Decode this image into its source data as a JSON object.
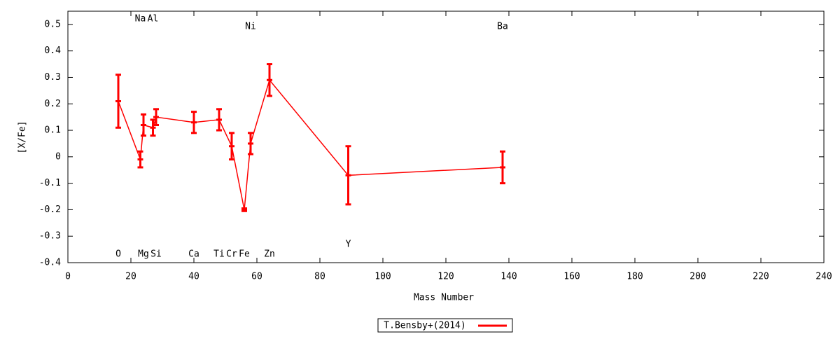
{
  "chart_data": {
    "type": "errorline",
    "x_label": "Mass Number",
    "y_label": "[X/Fe]",
    "xlim": [
      0,
      240
    ],
    "xticks": [
      0,
      20,
      40,
      60,
      80,
      100,
      120,
      140,
      160,
      180,
      200,
      220,
      240
    ],
    "ylim": [
      -0.4,
      0.55
    ],
    "yticks": [
      -0.4,
      -0.3,
      -0.2,
      -0.1,
      0,
      0.1,
      0.2,
      0.3,
      0.4,
      0.5
    ],
    "legend": "bottom",
    "series": [
      {
        "name": "T.Bensby+(2014)",
        "color": "#ff0000",
        "labels": [
          "O",
          "Na",
          "Mg",
          "Al",
          "Si",
          "Ca",
          "Ti",
          "Cr",
          "Fe",
          "Ni",
          "Zn",
          "Y",
          "Ba"
        ],
        "x": [
          16,
          23,
          24,
          27,
          28,
          40,
          48,
          52,
          56,
          58,
          64,
          89,
          138
        ],
        "values": [
          0.21,
          -0.01,
          0.12,
          0.11,
          0.15,
          0.13,
          0.14,
          0.04,
          -0.2,
          0.05,
          0.29,
          -0.07,
          -0.04
        ],
        "errors": [
          0.1,
          0.03,
          0.04,
          0.03,
          0.03,
          0.04,
          0.04,
          0.05,
          0.005,
          0.04,
          0.06,
          0.11,
          0.06
        ]
      }
    ]
  }
}
